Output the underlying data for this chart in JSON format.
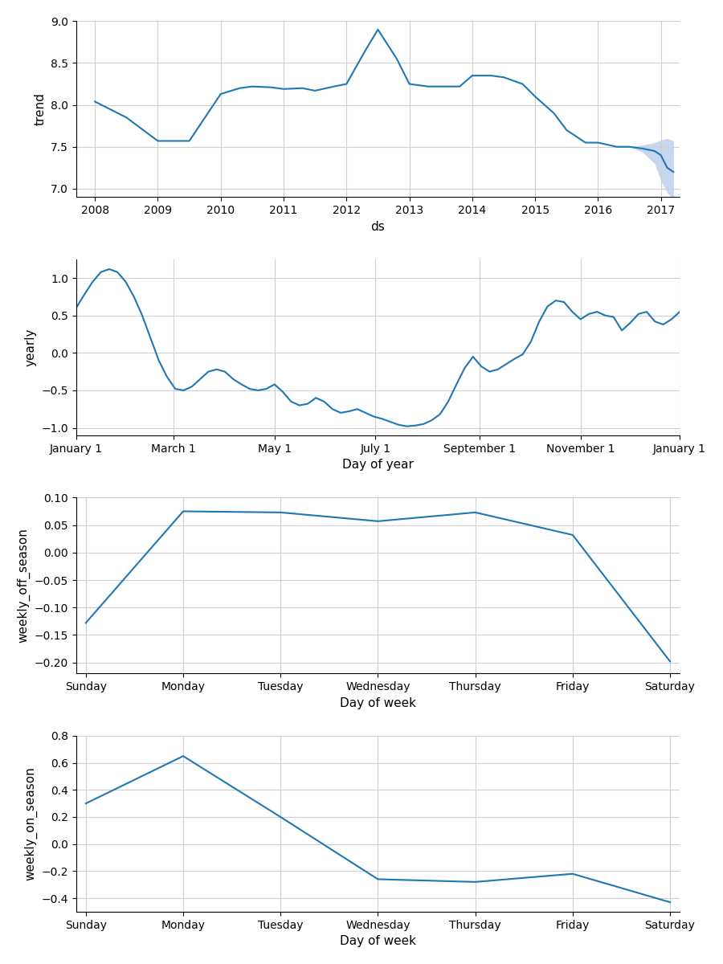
{
  "line_color": "#1f77b4",
  "fill_color": "#aec7e8",
  "background_color": "#ffffff",
  "grid_color": "#d0d0d0",
  "trend_x": [
    2008.0,
    2008.5,
    2009.0,
    2009.5,
    2010.0,
    2010.3,
    2010.5,
    2010.8,
    2011.0,
    2011.3,
    2011.5,
    2011.8,
    2012.0,
    2012.3,
    2012.5,
    2012.8,
    2013.0,
    2013.3,
    2013.5,
    2013.8,
    2014.0,
    2014.3,
    2014.5,
    2014.8,
    2015.0,
    2015.3,
    2015.5,
    2015.8,
    2016.0,
    2016.3,
    2016.5,
    2016.7,
    2016.9,
    2017.0,
    2017.1,
    2017.2
  ],
  "trend_y": [
    8.04,
    7.85,
    7.57,
    7.57,
    8.13,
    8.2,
    8.22,
    8.21,
    8.19,
    8.2,
    8.17,
    8.22,
    8.25,
    8.65,
    8.9,
    8.55,
    8.25,
    8.22,
    8.22,
    8.22,
    8.35,
    8.35,
    8.33,
    8.25,
    8.1,
    7.9,
    7.7,
    7.55,
    7.55,
    7.5,
    7.5,
    7.48,
    7.45,
    7.4,
    7.25,
    7.2
  ],
  "trend_upper": [
    8.04,
    7.85,
    7.57,
    7.57,
    8.13,
    8.2,
    8.22,
    8.21,
    8.19,
    8.2,
    8.17,
    8.22,
    8.25,
    8.65,
    8.9,
    8.55,
    8.25,
    8.22,
    8.22,
    8.22,
    8.35,
    8.35,
    8.33,
    8.25,
    8.1,
    7.9,
    7.7,
    7.55,
    7.55,
    7.5,
    7.5,
    7.52,
    7.55,
    7.58,
    7.6,
    7.57
  ],
  "trend_lower": [
    8.04,
    7.85,
    7.57,
    7.57,
    8.13,
    8.2,
    8.22,
    8.21,
    8.19,
    8.2,
    8.17,
    8.22,
    8.25,
    8.65,
    8.9,
    8.55,
    8.25,
    8.22,
    8.22,
    8.22,
    8.35,
    8.35,
    8.33,
    8.25,
    8.1,
    7.9,
    7.7,
    7.55,
    7.55,
    7.5,
    7.5,
    7.44,
    7.3,
    7.1,
    6.95,
    6.88
  ],
  "trend_xlabel": "ds",
  "trend_ylabel": "trend",
  "trend_ylim": [
    6.9,
    9.0
  ],
  "trend_xticks": [
    2008,
    2009,
    2010,
    2011,
    2012,
    2013,
    2014,
    2015,
    2016,
    2017
  ],
  "yearly_x_labels": [
    "January 1",
    "March 1",
    "May 1",
    "July 1",
    "September 1",
    "November 1",
    "January 1"
  ],
  "yearly_x_pos": [
    0,
    59,
    120,
    181,
    244,
    305,
    365
  ],
  "yearly_x": [
    0,
    5,
    10,
    15,
    20,
    25,
    30,
    35,
    40,
    45,
    50,
    55,
    60,
    65,
    70,
    75,
    80,
    85,
    90,
    95,
    100,
    105,
    110,
    115,
    120,
    125,
    130,
    135,
    140,
    145,
    150,
    155,
    160,
    165,
    170,
    175,
    180,
    185,
    190,
    195,
    200,
    205,
    210,
    215,
    220,
    225,
    230,
    235,
    240,
    245,
    250,
    255,
    260,
    265,
    270,
    275,
    280,
    285,
    290,
    295,
    300,
    305,
    310,
    315,
    320,
    325,
    330,
    335,
    340,
    345,
    350,
    355,
    360,
    365
  ],
  "yearly_y": [
    0.6,
    0.78,
    0.95,
    1.08,
    1.12,
    1.08,
    0.95,
    0.75,
    0.5,
    0.2,
    -0.1,
    -0.32,
    -0.48,
    -0.5,
    -0.45,
    -0.35,
    -0.25,
    -0.22,
    -0.25,
    -0.35,
    -0.42,
    -0.48,
    -0.5,
    -0.48,
    -0.42,
    -0.52,
    -0.65,
    -0.7,
    -0.68,
    -0.6,
    -0.65,
    -0.75,
    -0.8,
    -0.78,
    -0.75,
    -0.8,
    -0.85,
    -0.88,
    -0.92,
    -0.96,
    -0.98,
    -0.97,
    -0.95,
    -0.9,
    -0.82,
    -0.65,
    -0.42,
    -0.2,
    -0.05,
    -0.18,
    -0.25,
    -0.22,
    -0.15,
    -0.08,
    -0.02,
    0.15,
    0.42,
    0.62,
    0.7,
    0.68,
    0.55,
    0.45,
    0.52,
    0.55,
    0.5,
    0.48,
    0.3,
    0.4,
    0.52,
    0.55,
    0.42,
    0.38,
    0.45,
    0.55
  ],
  "yearly_xlabel": "Day of year",
  "yearly_ylabel": "yearly",
  "yearly_ylim": [
    -1.1,
    1.25
  ],
  "weekly_off_x": [
    0,
    1,
    2,
    3,
    4,
    5,
    6
  ],
  "weekly_off_y": [
    -0.128,
    0.075,
    0.073,
    0.057,
    0.073,
    0.032,
    -0.198
  ],
  "weekly_off_labels": [
    "Sunday",
    "Monday",
    "Tuesday",
    "Wednesday",
    "Thursday",
    "Friday",
    "Saturday"
  ],
  "weekly_off_xlabel": "Day of week",
  "weekly_off_ylabel": "weekly_off_season",
  "weekly_off_ylim": [
    -0.22,
    0.1
  ],
  "weekly_on_x": [
    0,
    1,
    2,
    3,
    4,
    5,
    6
  ],
  "weekly_on_y": [
    0.3,
    0.65,
    0.2,
    -0.26,
    -0.28,
    -0.22,
    -0.43
  ],
  "weekly_on_labels": [
    "Sunday",
    "Monday",
    "Tuesday",
    "Wednesday",
    "Thursday",
    "Friday",
    "Saturday"
  ],
  "weekly_on_xlabel": "Day of week",
  "weekly_on_ylabel": "weekly_on_season",
  "weekly_on_ylim": [
    -0.5,
    0.8
  ]
}
